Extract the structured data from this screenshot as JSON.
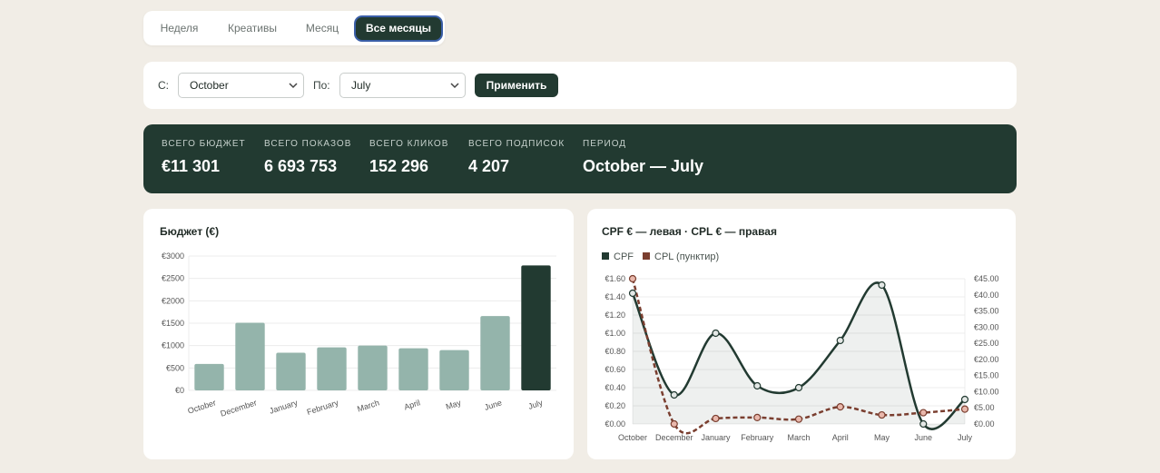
{
  "tabs": [
    {
      "label": "Неделя",
      "active": false
    },
    {
      "label": "Креативы",
      "active": false
    },
    {
      "label": "Месяц",
      "active": false
    },
    {
      "label": "Все месяцы",
      "active": true
    }
  ],
  "filter": {
    "from_label": "С:",
    "from_value": "October",
    "to_label": "По:",
    "to_value": "July",
    "apply_label": "Применить"
  },
  "summary": [
    {
      "label": "Всего бюджет",
      "value": "€11 301"
    },
    {
      "label": "Всего показов",
      "value": "6 693 753"
    },
    {
      "label": "Всего кликов",
      "value": "152 296"
    },
    {
      "label": "Всего подписок",
      "value": "4 207"
    },
    {
      "label": "Период",
      "value": "October — July"
    }
  ],
  "colors": {
    "dark": "#223a31",
    "bar": "#94b4ab",
    "cpf_line": "#223a31",
    "cpl_line": "#7a3e2f",
    "cpl_marker_fill": "#e9b8ac",
    "background": "#f1ede6"
  },
  "chart_data": [
    {
      "type": "bar",
      "title": "Бюджет (€)",
      "categories": [
        "October",
        "December",
        "January",
        "February",
        "March",
        "April",
        "May",
        "June",
        "July"
      ],
      "values": [
        590,
        1510,
        840,
        960,
        1000,
        940,
        900,
        1660,
        2790
      ],
      "highlight_index": 8,
      "ylim": [
        0,
        3000
      ],
      "yticks": [
        0,
        500,
        1000,
        1500,
        2000,
        2500,
        3000
      ],
      "ytick_labels": [
        "€0",
        "€500",
        "€1000",
        "€1500",
        "€2000",
        "€2500",
        "€3000"
      ],
      "grid": true
    },
    {
      "type": "line",
      "title": "CPF € — левая · CPL € — правая",
      "categories": [
        "October",
        "December",
        "January",
        "February",
        "March",
        "April",
        "May",
        "June",
        "July"
      ],
      "series": [
        {
          "name": "CPF",
          "axis": "left",
          "values": [
            1.44,
            0.32,
            1.0,
            0.42,
            0.4,
            0.92,
            1.53,
            0.0,
            0.27
          ]
        },
        {
          "name": "CPL (пунктир)",
          "axis": "right",
          "values": [
            45.0,
            0.0,
            1.7,
            2.0,
            1.5,
            5.3,
            2.8,
            3.5,
            4.6
          ]
        }
      ],
      "y_left": {
        "lim": [
          0,
          1.6
        ],
        "ticks": [
          0,
          0.2,
          0.4,
          0.6,
          0.8,
          1.0,
          1.2,
          1.4,
          1.6
        ],
        "labels": [
          "€0.00",
          "€0.20",
          "€0.40",
          "€0.60",
          "€0.80",
          "€1.00",
          "€1.20",
          "€1.40",
          "€1.60"
        ]
      },
      "y_right": {
        "lim": [
          0,
          45
        ],
        "ticks": [
          0,
          5,
          10,
          15,
          20,
          25,
          30,
          35,
          40,
          45
        ],
        "labels": [
          "€0.00",
          "€5.00",
          "€10.00",
          "€15.00",
          "€20.00",
          "€25.00",
          "€30.00",
          "€35.00",
          "€40.00",
          "€45.00"
        ]
      },
      "legend": "top-left",
      "grid": true
    }
  ]
}
